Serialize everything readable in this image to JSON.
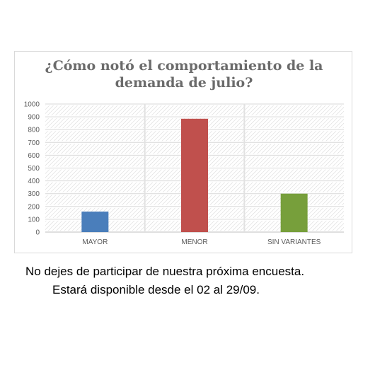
{
  "chart_data": {
    "type": "bar",
    "title_lines": [
      "¿Cómo notó el comportamiento de la",
      "demanda de julio?"
    ],
    "categories": [
      "MAYOR",
      "MENOR",
      "SIN VARIANTES"
    ],
    "values": [
      160,
      885,
      300
    ],
    "colors": [
      "#4a7ebb",
      "#c0504d",
      "#779f3b"
    ],
    "ylim": [
      0,
      1000
    ],
    "yticks": [
      0,
      100,
      200,
      300,
      400,
      500,
      600,
      700,
      800,
      900,
      1000
    ],
    "grid": true,
    "gridline_style": "hatched",
    "legend": "none"
  },
  "footer": {
    "line1": "No dejes de participar de nuestra próxima encuesta.",
    "line2": "Estará disponible desde el 02 al 29/09."
  }
}
